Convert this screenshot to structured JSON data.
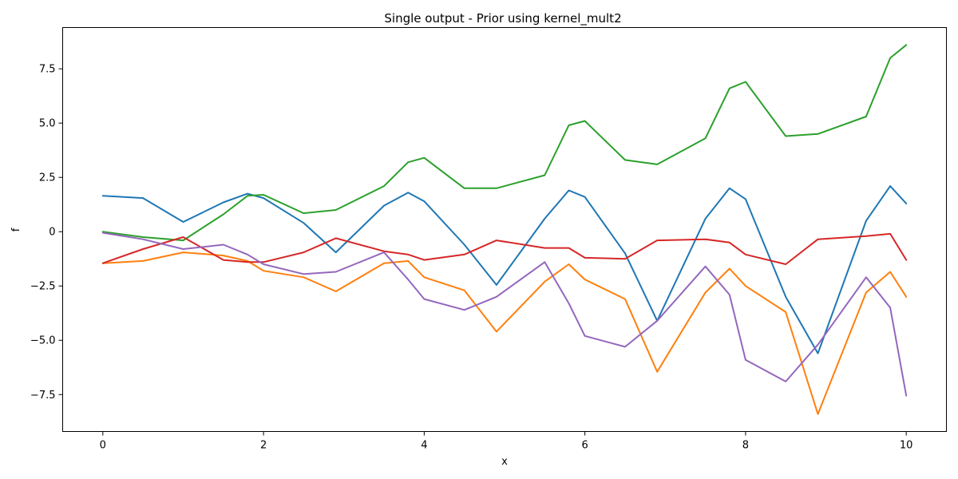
{
  "chart_data": {
    "type": "line",
    "title": "Single output - Prior using kernel_mult2",
    "xlabel": "x",
    "ylabel": "f",
    "xlim": [
      -0.5,
      10.5
    ],
    "ylim": [
      -9.2,
      9.4
    ],
    "xticks": [
      0,
      2,
      4,
      6,
      8,
      10
    ],
    "xtick_labels": [
      "0",
      "2",
      "4",
      "6",
      "8",
      "10"
    ],
    "yticks": [
      -7.5,
      -5.0,
      -2.5,
      0,
      2.5,
      5.0,
      7.5
    ],
    "ytick_labels": [
      "−7.5",
      "−5.0",
      "−2.5",
      "0",
      "2.5",
      "5.0",
      "7.5"
    ],
    "grid": false,
    "legend": "none",
    "x": [
      0,
      0.5,
      1,
      1.5,
      1.8,
      2,
      2.5,
      2.9,
      3.5,
      3.8,
      4,
      4.5,
      4.9,
      5.5,
      5.8,
      6,
      6.5,
      6.9,
      7.5,
      7.8,
      8,
      8.5,
      8.9,
      9.5,
      9.8,
      10
    ],
    "series": [
      {
        "color": "#1f77b4",
        "values": [
          1.65,
          1.55,
          0.45,
          1.35,
          1.75,
          1.55,
          0.4,
          -0.95,
          1.2,
          1.8,
          1.4,
          -0.6,
          -2.45,
          0.6,
          1.9,
          1.6,
          -1.0,
          -4.1,
          0.6,
          2.0,
          1.5,
          -3.0,
          -5.6,
          0.5,
          2.1,
          1.3
        ]
      },
      {
        "color": "#ff7f0e",
        "values": [
          -1.45,
          -1.35,
          -0.95,
          -1.1,
          -1.35,
          -1.8,
          -2.1,
          -2.75,
          -1.45,
          -1.35,
          -2.1,
          -2.7,
          -4.6,
          -2.3,
          -1.5,
          -2.2,
          -3.1,
          -6.45,
          -2.8,
          -1.7,
          -2.5,
          -3.7,
          -8.4,
          -2.8,
          -1.85,
          -3.0
        ]
      },
      {
        "color": "#2ca02c",
        "values": [
          0.0,
          -0.25,
          -0.4,
          0.8,
          1.65,
          1.7,
          0.85,
          1.0,
          2.1,
          3.2,
          3.4,
          2.0,
          2.0,
          2.6,
          4.9,
          5.1,
          3.3,
          3.1,
          4.3,
          6.6,
          6.9,
          4.4,
          4.5,
          5.3,
          8.0,
          8.6
        ]
      },
      {
        "color": "#d62728",
        "values": [
          -1.45,
          -0.8,
          -0.25,
          -1.3,
          -1.4,
          -1.4,
          -0.95,
          -0.3,
          -0.9,
          -1.05,
          -1.3,
          -1.05,
          -0.4,
          -0.75,
          -0.75,
          -1.2,
          -1.25,
          -0.4,
          -0.35,
          -0.5,
          -1.05,
          -1.5,
          -0.35,
          -0.2,
          -0.1,
          -1.3
        ]
      },
      {
        "color": "#9467bd",
        "values": [
          -0.05,
          -0.35,
          -0.8,
          -0.6,
          -1.05,
          -1.5,
          -1.95,
          -1.85,
          -0.95,
          -2.2,
          -3.1,
          -3.6,
          -3.0,
          -1.4,
          -3.3,
          -4.8,
          -5.3,
          -4.1,
          -1.6,
          -2.9,
          -5.9,
          -6.9,
          -5.2,
          -2.1,
          -3.5,
          -7.55
        ]
      }
    ]
  }
}
